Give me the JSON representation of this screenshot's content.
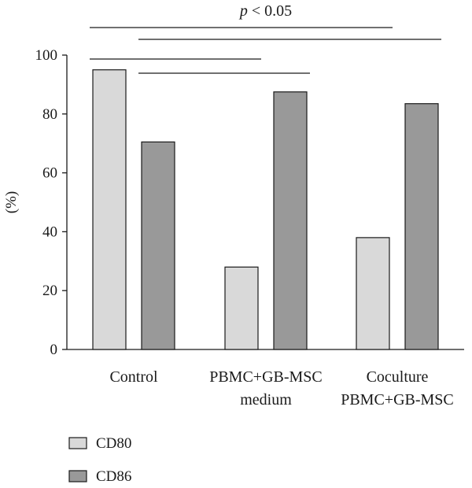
{
  "chart_data": {
    "type": "bar",
    "categories": [
      [
        "Control"
      ],
      [
        "PBMC+GB-MSC",
        "medium"
      ],
      [
        "Coculture",
        "PBMC+GB-MSC"
      ]
    ],
    "series": [
      {
        "name": "CD80",
        "values": [
          95,
          28,
          38
        ],
        "color": "#d9d9d9"
      },
      {
        "name": "CD86",
        "values": [
          70.5,
          87.5,
          83.5
        ],
        "color": "#999999"
      }
    ],
    "ylabel": "(%)",
    "ylim": [
      0,
      100
    ],
    "yticks": [
      0,
      20,
      40,
      60,
      80,
      100
    ],
    "legend_position": "bottom-left",
    "grid": false,
    "annotations": {
      "significance_label": "p < 0.05",
      "significance_label_italic_part": "p",
      "significance_label_rest": " < 0.05",
      "comparisons": [
        {
          "from": {
            "category": 0,
            "series": 0
          },
          "to": {
            "category": 2,
            "series": 0
          }
        },
        {
          "from": {
            "category": 0,
            "series": 1
          },
          "to": {
            "category": 2,
            "series": 1
          }
        },
        {
          "from": {
            "category": 0,
            "series": 0
          },
          "to": {
            "category": 1,
            "series": 0
          }
        },
        {
          "from": {
            "category": 0,
            "series": 1
          },
          "to": {
            "category": 1,
            "series": 1
          }
        }
      ]
    }
  }
}
